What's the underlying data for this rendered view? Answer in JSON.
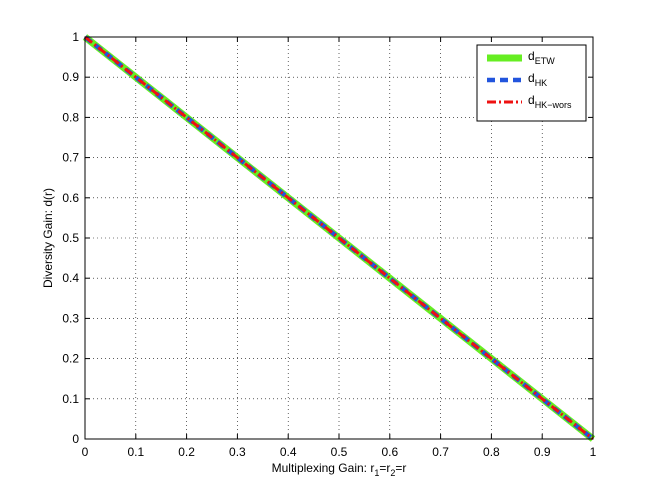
{
  "chart_data": {
    "type": "line",
    "title": "",
    "xlabel": {
      "main": "Multiplexing Gain: r",
      "sub1": "1",
      "mid": "=r",
      "sub2": "2",
      "tail": "=r"
    },
    "ylabel": "Diversity Gain: d(r)",
    "xlim": [
      0,
      1
    ],
    "ylim": [
      0,
      1
    ],
    "xticks": [
      "0",
      "0.1",
      "0.2",
      "0.3",
      "0.4",
      "0.5",
      "0.6",
      "0.7",
      "0.8",
      "0.9",
      "1"
    ],
    "yticks": [
      "0",
      "0.1",
      "0.2",
      "0.3",
      "0.4",
      "0.5",
      "0.6",
      "0.7",
      "0.8",
      "0.9",
      "1"
    ],
    "grid": true,
    "legend_position": "top-right",
    "series": [
      {
        "name": "d",
        "sub": "ETW",
        "color": "#66ee22",
        "style": "solid",
        "x": [
          0,
          1
        ],
        "y": [
          1,
          0
        ]
      },
      {
        "name": "d",
        "sub": "HK",
        "color": "#2255dd",
        "style": "dashed",
        "x": [
          0,
          1
        ],
        "y": [
          1,
          0
        ]
      },
      {
        "name": "d",
        "sub": "HK−wors",
        "color": "#ee1111",
        "style": "dashdot",
        "x": [
          0,
          1
        ],
        "y": [
          1,
          0
        ]
      }
    ]
  }
}
